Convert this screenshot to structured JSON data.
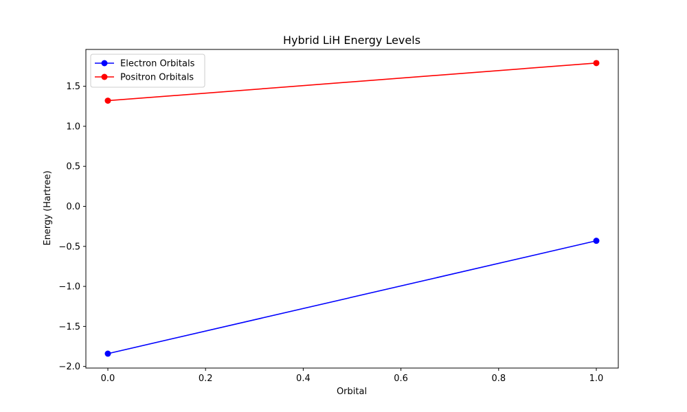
{
  "chart_data": {
    "type": "line",
    "title": "Hybrid LiH Energy Levels",
    "xlabel": "Orbital",
    "ylabel": "Energy (Hartree)",
    "x": [
      0,
      1
    ],
    "xlim": [
      -0.045,
      1.045
    ],
    "ylim": [
      -2.02,
      1.96
    ],
    "xticks": [
      0.0,
      0.2,
      0.4,
      0.6,
      0.8,
      1.0
    ],
    "xtick_labels": [
      "0.0",
      "0.2",
      "0.4",
      "0.6",
      "0.8",
      "1.0"
    ],
    "yticks": [
      -2.0,
      -1.5,
      -1.0,
      -0.5,
      0.0,
      0.5,
      1.0,
      1.5
    ],
    "ytick_labels": [
      "−2.0",
      "−1.5",
      "−1.0",
      "−0.5",
      "0.0",
      "0.5",
      "1.0",
      "1.5"
    ],
    "grid": false,
    "legend_position": "top-left",
    "series": [
      {
        "name": "Electron Orbitals",
        "values": [
          -1.84,
          -0.43
        ],
        "color": "#0000ff",
        "marker": "circle"
      },
      {
        "name": "Positron Orbitals",
        "values": [
          1.32,
          1.79
        ],
        "color": "#ff0000",
        "marker": "circle"
      }
    ]
  }
}
